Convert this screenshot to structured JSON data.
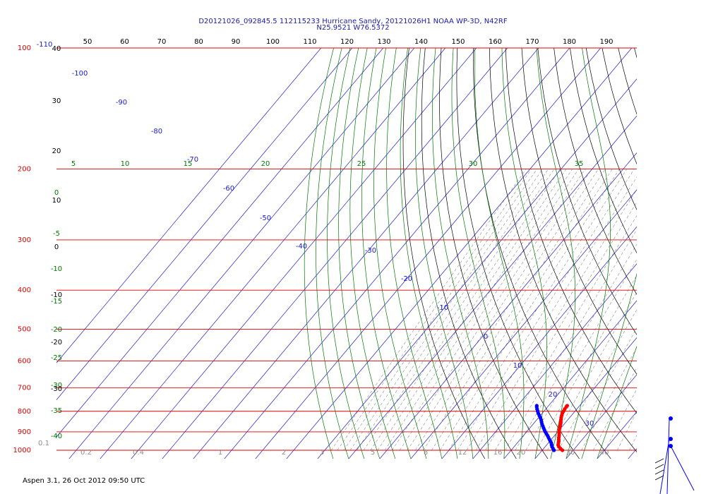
{
  "chart_data": {
    "type": "skew-t",
    "title": "D20121026_092845.5 112115233 Hurricane Sandy, 20121026H1 NOAA WP-3D, N42RF",
    "subtitle": "N25.9521 W76.5372",
    "footer": "Aspen 3.1, 26 Oct 2012  09:50 UTC",
    "pressure_levels": [
      100,
      200,
      300,
      400,
      500,
      600,
      700,
      800,
      900,
      1000
    ],
    "theta_labels": [
      50,
      60,
      70,
      80,
      90,
      100,
      110,
      120,
      130,
      140,
      150,
      160,
      170,
      180,
      190
    ],
    "temperature_labels": [
      -110,
      -100,
      -90,
      -80,
      -70,
      -60,
      -50,
      -40,
      -30,
      -20,
      -10,
      0,
      10,
      20,
      30
    ],
    "theta_e_labels": [
      5,
      10,
      15,
      20,
      25,
      30,
      35
    ],
    "left_temp_labels": [
      40,
      30,
      20,
      10,
      0,
      -10,
      -20,
      -30
    ],
    "left_green_labels": [
      0,
      -5,
      -10,
      -15,
      -20,
      -25,
      -30,
      -35,
      -40
    ],
    "mixing_ratio_labels": [
      "0.1",
      "0.2",
      "0.4",
      "1",
      "2",
      "3",
      "5",
      "8",
      "12",
      "16",
      "20",
      "30",
      "40"
    ],
    "temperature_profile": [
      [
        1000,
        26.5
      ],
      [
        990,
        25.4
      ],
      [
        980,
        24.4
      ],
      [
        970,
        23.7
      ],
      [
        960,
        23.3
      ],
      [
        950,
        22.9
      ],
      [
        940,
        22.4
      ],
      [
        930,
        21.9
      ],
      [
        920,
        21.5
      ],
      [
        910,
        21.0
      ],
      [
        900,
        20.5
      ],
      [
        890,
        20.0
      ],
      [
        880,
        19.6
      ],
      [
        870,
        19.2
      ],
      [
        860,
        18.8
      ],
      [
        850,
        18.3
      ],
      [
        840,
        17.8
      ],
      [
        830,
        17.3
      ],
      [
        820,
        16.9
      ],
      [
        810,
        16.5
      ],
      [
        800,
        16.3
      ],
      [
        790,
        16.1
      ],
      [
        780,
        16.0
      ],
      [
        775,
        16.0
      ]
    ],
    "dewpoint_profile": [
      [
        1000,
        23.8
      ],
      [
        990,
        23.0
      ],
      [
        980,
        22.2
      ],
      [
        970,
        21.6
      ],
      [
        960,
        21.0
      ],
      [
        950,
        20.2
      ],
      [
        940,
        19.4
      ],
      [
        930,
        18.6
      ],
      [
        920,
        17.8
      ],
      [
        910,
        16.9
      ],
      [
        900,
        16.0
      ],
      [
        890,
        15.2
      ],
      [
        880,
        14.4
      ],
      [
        870,
        13.6
      ],
      [
        860,
        12.8
      ],
      [
        850,
        12.1
      ],
      [
        840,
        11.4
      ],
      [
        830,
        10.6
      ],
      [
        820,
        9.7
      ],
      [
        810,
        8.8
      ],
      [
        800,
        8.0
      ],
      [
        790,
        7.2
      ],
      [
        780,
        6.5
      ],
      [
        775,
        6.2
      ]
    ],
    "colors": {
      "isobar": "#e00000",
      "isotherm": "#1a1ad0",
      "dry_adiabat": "#000000",
      "moist_adiabat": "#007800",
      "mixing_ratio": "#8c8c8c",
      "temperature": "#ff0000",
      "dewpoint": "#0000ff",
      "title": "#1a1aa6"
    }
  }
}
